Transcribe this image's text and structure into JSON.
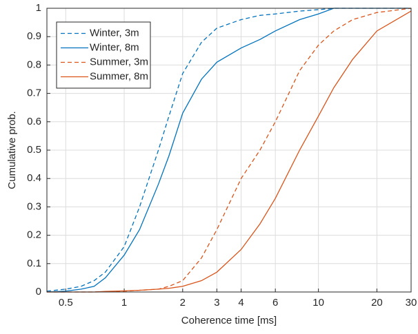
{
  "chart_data": {
    "type": "line",
    "x_label": "Coherence time [ms]",
    "y_label": "Cumulative prob.",
    "x_scale": "log",
    "grid": true,
    "legend": "upper left",
    "xlim": [
      0.4,
      30
    ],
    "ylim": [
      0,
      1
    ],
    "xticks": [
      0.5,
      1,
      2,
      3,
      4,
      6,
      10,
      20,
      30
    ],
    "yticks": [
      0,
      0.1,
      0.2,
      0.3,
      0.4,
      0.5,
      0.6,
      0.7,
      0.8,
      0.9,
      1
    ],
    "x": [
      0.4,
      0.5,
      0.6,
      0.7,
      0.8,
      1,
      1.2,
      1.5,
      1.7,
      2,
      2.5,
      3,
      4,
      5,
      6,
      8,
      10,
      12,
      15,
      20,
      30
    ],
    "series": [
      {
        "name": "Winter, 3m",
        "color": "#0072bd",
        "linestyle": "dashed",
        "values": [
          0.003,
          0.01,
          0.02,
          0.04,
          0.07,
          0.16,
          0.3,
          0.5,
          0.62,
          0.77,
          0.88,
          0.93,
          0.96,
          0.975,
          0.98,
          0.99,
          0.995,
          1,
          1,
          1,
          1
        ]
      },
      {
        "name": "Winter, 8m",
        "color": "#0072bd",
        "linestyle": "solid",
        "values": [
          0,
          0.003,
          0.01,
          0.02,
          0.05,
          0.13,
          0.22,
          0.38,
          0.48,
          0.63,
          0.75,
          0.81,
          0.86,
          0.89,
          0.92,
          0.96,
          0.98,
          1,
          1,
          1,
          1
        ]
      },
      {
        "name": "Summer, 3m",
        "color": "#d95319",
        "linestyle": "dashed",
        "values": [
          0,
          0,
          0,
          0,
          0.001,
          0.003,
          0.006,
          0.01,
          0.02,
          0.04,
          0.12,
          0.22,
          0.4,
          0.5,
          0.6,
          0.78,
          0.87,
          0.92,
          0.96,
          0.985,
          1
        ]
      },
      {
        "name": "Summer, 8m",
        "color": "#d95319",
        "linestyle": "solid",
        "values": [
          0,
          0,
          0,
          0,
          0.002,
          0.004,
          0.006,
          0.01,
          0.013,
          0.02,
          0.04,
          0.07,
          0.15,
          0.24,
          0.33,
          0.5,
          0.62,
          0.72,
          0.82,
          0.92,
          0.99
        ]
      }
    ]
  }
}
